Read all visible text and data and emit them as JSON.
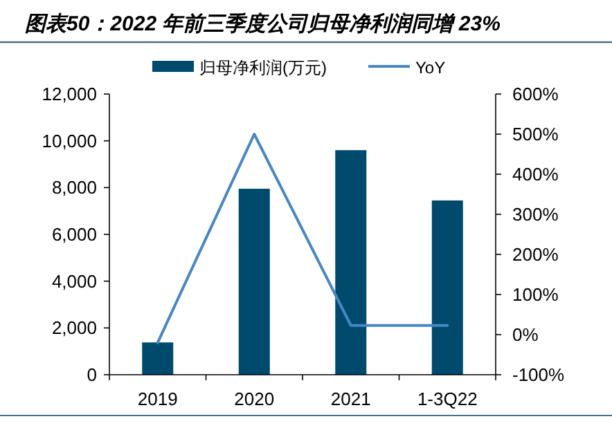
{
  "chart_data": {
    "type": "bar",
    "title": "图表50：2022 年前三季度公司归母净利润同增 23%",
    "categories": [
      "2019",
      "2020",
      "2021",
      "1-3Q22"
    ],
    "series": [
      {
        "name": "归母净利润(万元)",
        "color": "#004a6e",
        "values": [
          1380,
          7950,
          9600,
          7450
        ]
      },
      {
        "name": "YoY",
        "type": "line",
        "axis": "y2",
        "color": "#4a86c5",
        "values": [
          -20,
          500,
          23,
          23
        ]
      }
    ],
    "ylim": [
      0,
      12000
    ],
    "yticks": [
      {
        "value": 0,
        "label": "0"
      },
      {
        "value": 2000,
        "label": "2,000"
      },
      {
        "value": 4000,
        "label": "4,000"
      },
      {
        "value": 6000,
        "label": "6,000"
      },
      {
        "value": 8000,
        "label": "8,000"
      },
      {
        "value": 10000,
        "label": "10,000"
      },
      {
        "value": 12000,
        "label": "12,000"
      }
    ],
    "y2lim": [
      -100,
      600
    ],
    "y2ticks": [
      {
        "value": -100,
        "label": "-100%"
      },
      {
        "value": 0,
        "label": "0%"
      },
      {
        "value": 100,
        "label": "100%"
      },
      {
        "value": 200,
        "label": "200%"
      },
      {
        "value": 300,
        "label": "300%"
      },
      {
        "value": 400,
        "label": "400%"
      },
      {
        "value": 500,
        "label": "500%"
      },
      {
        "value": 600,
        "label": "600%"
      }
    ],
    "legend": "top"
  }
}
